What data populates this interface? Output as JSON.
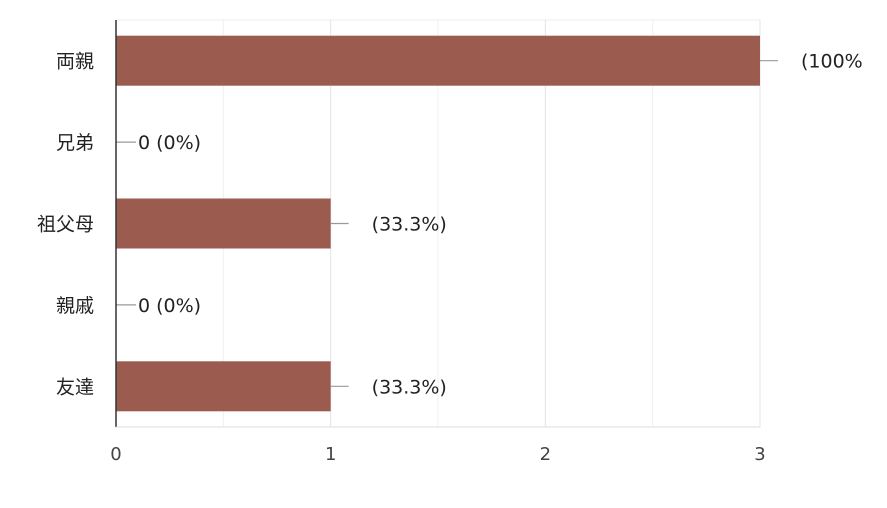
{
  "chart_data": {
    "type": "bar",
    "orientation": "horizontal",
    "categories": [
      "両親",
      "兄弟",
      "祖父母",
      "親戚",
      "友達"
    ],
    "values": [
      3,
      0,
      1,
      0,
      1
    ],
    "data_labels": [
      "(100%",
      "0 (0%)",
      "(33.3%)",
      "0 (0%)",
      "(33.3%)"
    ],
    "x_ticks": [
      "0",
      "1",
      "2",
      "3"
    ],
    "xlim": [
      0,
      3
    ],
    "grid": true,
    "legend": "none",
    "bar_color": "#9b5b4f",
    "title": "",
    "xlabel": "",
    "ylabel": ""
  }
}
